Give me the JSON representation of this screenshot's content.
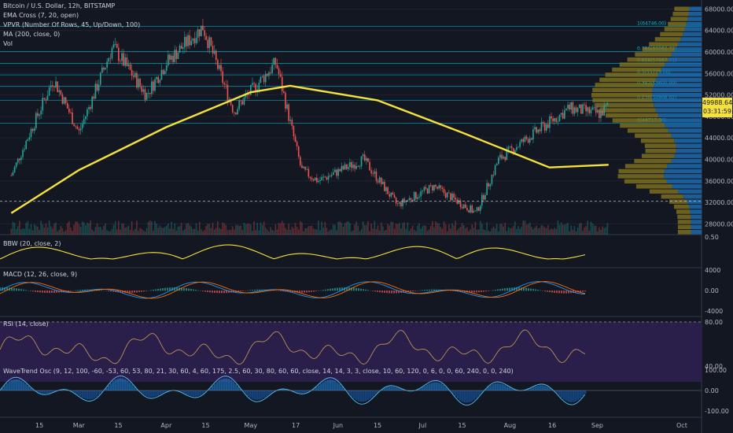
{
  "header": {
    "title": "Bitcoin / U.S. Dollar, 12h, BITSTAMP",
    "ema": "EMA Cross (7, 20, open)",
    "vpvr": "VPVR (Number Of Rows, 45, Up/Down, 100)",
    "ma": "MA (200, close, 0)",
    "vol": "Vol"
  },
  "price_badge": {
    "price": "49988.64",
    "countdown": "03:31:59"
  },
  "panels": {
    "bbw": {
      "label": "BBW (20, close, 2)",
      "value": "0.50"
    },
    "macd": {
      "label": "MACD (12, 26, close, 9)"
    },
    "rsi": {
      "label": "RSI (14, close)"
    },
    "osc": {
      "label": "WaveTrend Osc (9, 12, 100, -60, -53, 60, 53, 80, 21, 30, 60, 4, 60, 175, 2.5, 60, 30, 80, 60, 60, close, 14, 14, 3, 3, close, 10, 60, 120, 0, 6, 0, 0, 60, 240, 0, 0, 240)"
    }
  },
  "chart_data": {
    "type": "line",
    "title": "Bitcoin / U.S. Dollar, 12h, BITSTAMP",
    "x_ticks": [
      "15",
      "Mar",
      "15",
      "Apr",
      "15",
      "May",
      "17",
      "Jun",
      "15",
      "Jul",
      "15",
      "Aug",
      "16",
      "Sep",
      "Oct"
    ],
    "price_axis": {
      "ticks": [
        28000,
        32000,
        36000,
        40000,
        44000,
        48000,
        52000,
        56000,
        60000,
        64000,
        68000
      ],
      "ylim": [
        26000,
        68500
      ]
    },
    "series": [
      {
        "name": "Price",
        "x": [
          "Feb 5",
          "Feb 20",
          "Mar 1",
          "Mar 13",
          "Mar 25",
          "Apr 1",
          "Apr 14",
          "Apr 25",
          "May 10",
          "May 19",
          "May 25",
          "Jun 10",
          "Jun 22",
          "Jul 5",
          "Jul 20",
          "Jul 28",
          "Aug 10",
          "Aug 22",
          "Sep 2",
          "Sep 5"
        ],
        "values": [
          37000,
          55000,
          45000,
          61000,
          52000,
          58000,
          64700,
          49000,
          58000,
          38000,
          36000,
          40000,
          31500,
          35000,
          30000,
          40000,
          45000,
          49500,
          48500,
          49988.64
        ]
      },
      {
        "name": "MA 200",
        "x": [
          "Feb 5",
          "Mar 1",
          "Apr 1",
          "May 1",
          "May 15",
          "Jun 15",
          "Jul 15",
          "Aug 15",
          "Sep 5"
        ],
        "values": [
          30000,
          38000,
          46000,
          52500,
          53700,
          51000,
          45000,
          38500,
          39000
        ]
      }
    ],
    "fib_levels": [
      {
        "label": "1(64746.00)",
        "value": 64746
      },
      {
        "label": "0.786(60082.72)",
        "value": 60082.72
      },
      {
        "label": "0.618(57887.01)",
        "value": 57887.01
      },
      {
        "label": "0.5(55729.00)",
        "value": 55729
      },
      {
        "label": "0.382(53600.99)",
        "value": 53600.99
      },
      {
        "label": "0.236(50968.02)",
        "value": 50968.02
      },
      {
        "label": "0(46717.00)",
        "value": 46717
      }
    ],
    "volume_profile_note": "",
    "bbw_axis": {
      "ticks": [
        0.5
      ]
    },
    "macd_axis": {
      "ticks": [
        4000,
        0.0,
        -4000
      ]
    },
    "rsi_axis": {
      "ticks": [
        80.0,
        40.0
      ]
    },
    "osc_axis": {
      "ticks": [
        100.0,
        0.0,
        -100.0
      ]
    },
    "colors": {
      "up": "#26a69a",
      "down": "#ef5350",
      "ma": "#f5e13b",
      "fib": "#00bcd4",
      "vp_up": "#1e6fb5",
      "vp_down": "#8a7a1c",
      "rsi_bg": "#2a1e4a",
      "rsi_line": "#c8a054"
    }
  }
}
